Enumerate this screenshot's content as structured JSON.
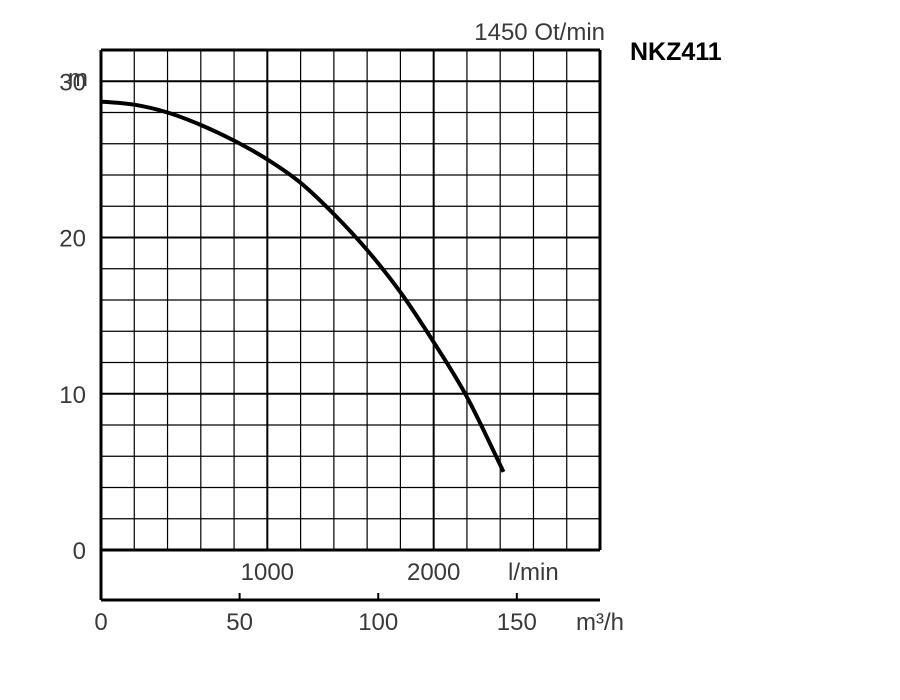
{
  "chart_data": {
    "type": "line",
    "title": "NKZ411",
    "subtitle": "1450 Ot/min",
    "ylabel": "m",
    "ylim": [
      0,
      32
    ],
    "xlabel_top": "l/min",
    "xlabel_bottom": "m³/h",
    "xlim": [
      0,
      3000
    ],
    "y_ticks": [
      0,
      10,
      20,
      30
    ],
    "x_ticks_top": [
      1000,
      2000
    ],
    "x_ticks_bottom": [
      {
        "flow_lpm": 0,
        "label": "0"
      },
      {
        "flow_lpm": 833.3,
        "label": "50"
      },
      {
        "flow_lpm": 1666.7,
        "label": "100"
      },
      {
        "flow_lpm": 2500,
        "label": "150"
      }
    ],
    "grid": true,
    "series": [
      {
        "x": [
          0,
          200,
          400,
          600,
          800,
          1000,
          1200,
          1400,
          1600,
          1800,
          2000,
          2200,
          2420
        ],
        "y": [
          28.7,
          28.5,
          28.0,
          27.2,
          26.2,
          25.0,
          23.5,
          21.5,
          19.2,
          16.5,
          13.3,
          9.8,
          5.0
        ]
      }
    ],
    "line_color": "#000000",
    "grid_color": "#000000"
  }
}
